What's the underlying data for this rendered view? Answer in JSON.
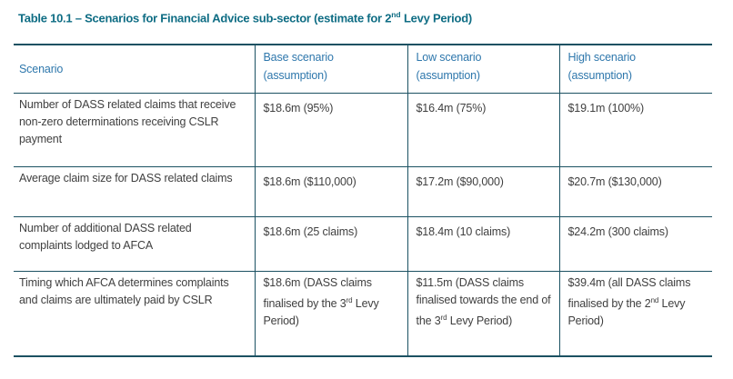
{
  "colors": {
    "title_text": "#0f6d84",
    "header_text": "#2e77ac",
    "border": "#1b5162",
    "body_text": "#404040",
    "page_bg": "#ffffff"
  },
  "title": {
    "pre": "Table 10.1 – Scenarios for Financial Advice sub-sector (estimate for 2",
    "sup": "nd",
    "post": " Levy Period)"
  },
  "table": {
    "headers": [
      {
        "line1": "Scenario",
        "line2": ""
      },
      {
        "line1": "Base scenario",
        "line2": "(assumption)"
      },
      {
        "line1": "Low scenario",
        "line2": "(assumption)"
      },
      {
        "line1": "High scenario",
        "line2": "(assumption)"
      }
    ],
    "rows": [
      {
        "scenario": "Number of DASS related claims that receive non-zero determinations receiving CSLR payment",
        "base": {
          "pre": "$18.6m (95%)",
          "sup": "",
          "post": ""
        },
        "low": {
          "pre": "$16.4m (75%)",
          "sup": "",
          "post": ""
        },
        "high": {
          "pre": "$19.1m (100%)",
          "sup": "",
          "post": ""
        }
      },
      {
        "scenario": "Average claim size for DASS related claims",
        "base": {
          "pre": "$18.6m ($110,000)",
          "sup": "",
          "post": ""
        },
        "low": {
          "pre": "$17.2m ($90,000)",
          "sup": "",
          "post": ""
        },
        "high": {
          "pre": "$20.7m ($130,000)",
          "sup": "",
          "post": ""
        }
      },
      {
        "scenario": "Number of additional DASS related complaints lodged to AFCA",
        "base": {
          "pre": "$18.6m (25 claims)",
          "sup": "",
          "post": ""
        },
        "low": {
          "pre": "$18.4m (10 claims)",
          "sup": "",
          "post": ""
        },
        "high": {
          "pre": "$24.2m (300 claims)",
          "sup": "",
          "post": ""
        }
      },
      {
        "scenario": "Timing which AFCA determines complaints and claims are ultimately paid by CSLR",
        "base": {
          "pre": "$18.6m (DASS claims finalised by the 3",
          "sup": "rd",
          "post": " Levy Period)"
        },
        "low": {
          "pre": "$11.5m (DASS claims finalised towards the end of the 3",
          "sup": "rd",
          "post": " Levy Period)"
        },
        "high": {
          "pre": "$39.4m (all DASS claims finalised by the 2",
          "sup": "nd",
          "post": " Levy Period)"
        }
      }
    ]
  }
}
